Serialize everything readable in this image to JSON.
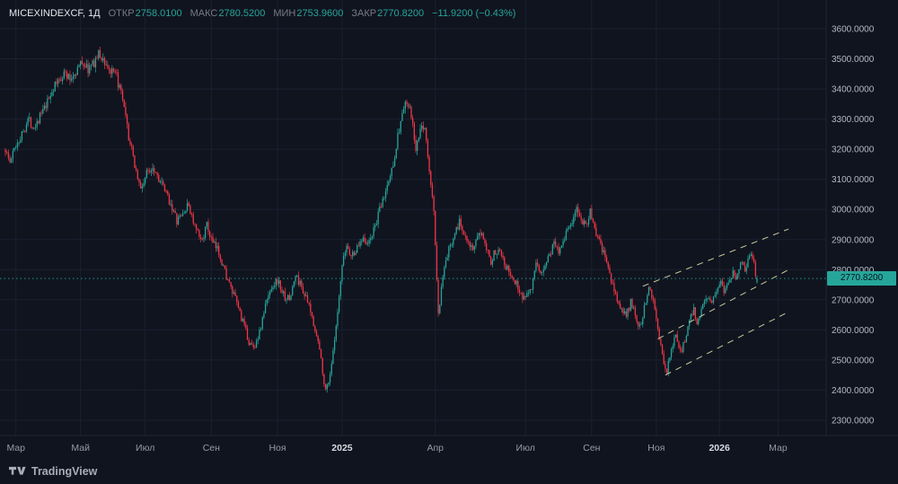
{
  "header": {
    "symbol": "MICEXINDEXCF, 1Д",
    "fields": [
      {
        "label": "ОТКР",
        "value": "2758.0100"
      },
      {
        "label": "МАКС",
        "value": "2780.5200"
      },
      {
        "label": "МИН",
        "value": "2753.9600"
      },
      {
        "label": "ЗАКР",
        "value": "2770.8200"
      }
    ],
    "change": "−11.9200 (−0.43%)"
  },
  "price_scale": {
    "ticks": [
      3600,
      3500,
      3400,
      3300,
      3200,
      3100,
      3000,
      2900,
      2800,
      2700,
      2600,
      2500,
      2400,
      2300
    ],
    "decimals": 4,
    "last_price_label": "2770.8200"
  },
  "time_scale": {
    "labels": [
      {
        "text": "Мар",
        "day": 7,
        "major": false
      },
      {
        "text": "Май",
        "day": 50,
        "major": false
      },
      {
        "text": "Июл",
        "day": 93,
        "major": false
      },
      {
        "text": "Сен",
        "day": 137,
        "major": false
      },
      {
        "text": "Ноя",
        "day": 181,
        "major": false
      },
      {
        "text": "2025",
        "day": 224,
        "major": true
      },
      {
        "text": "Апр",
        "day": 286,
        "major": false
      },
      {
        "text": "Июл",
        "day": 346,
        "major": false
      },
      {
        "text": "Сен",
        "day": 390,
        "major": false
      },
      {
        "text": "Ноя",
        "day": 433,
        "major": false
      },
      {
        "text": "2026",
        "day": 475,
        "major": true
      },
      {
        "text": "Мар",
        "day": 514,
        "major": false
      }
    ]
  },
  "footer": {
    "brand": "TradingView"
  },
  "chart_data": {
    "type": "candlestick",
    "symbol": "MICEXINDEXCF",
    "interval": "1Д",
    "title": "MICEX Index daily candlestick chart",
    "y_range": [
      2250,
      3650
    ],
    "grid": true,
    "total_days": 500,
    "last_candle": {
      "open": 2758.01,
      "high": 2780.52,
      "low": 2753.96,
      "close": 2770.82
    },
    "change": -11.92,
    "change_pct": -0.43,
    "price_line": 2770.82,
    "price_anchors": [
      [
        0,
        3200
      ],
      [
        3,
        3155
      ],
      [
        7,
        3215
      ],
      [
        11,
        3250
      ],
      [
        15,
        3300
      ],
      [
        19,
        3275
      ],
      [
        23,
        3310
      ],
      [
        27,
        3340
      ],
      [
        31,
        3395
      ],
      [
        35,
        3425
      ],
      [
        39,
        3455
      ],
      [
        43,
        3430
      ],
      [
        47,
        3460
      ],
      [
        51,
        3490
      ],
      [
        55,
        3465
      ],
      [
        58,
        3480
      ],
      [
        62,
        3515
      ],
      [
        66,
        3490
      ],
      [
        70,
        3455
      ],
      [
        74,
        3440
      ],
      [
        78,
        3360
      ],
      [
        82,
        3240
      ],
      [
        86,
        3150
      ],
      [
        90,
        3065
      ],
      [
        94,
        3120
      ],
      [
        98,
        3145
      ],
      [
        102,
        3105
      ],
      [
        106,
        3060
      ],
      [
        110,
        3020
      ],
      [
        114,
        2960
      ],
      [
        118,
        2985
      ],
      [
        122,
        3015
      ],
      [
        126,
        2940
      ],
      [
        130,
        2895
      ],
      [
        134,
        2945
      ],
      [
        138,
        2885
      ],
      [
        142,
        2860
      ],
      [
        146,
        2795
      ],
      [
        150,
        2735
      ],
      [
        154,
        2690
      ],
      [
        158,
        2625
      ],
      [
        162,
        2560
      ],
      [
        165,
        2540
      ],
      [
        169,
        2590
      ],
      [
        173,
        2680
      ],
      [
        177,
        2745
      ],
      [
        181,
        2765
      ],
      [
        185,
        2715
      ],
      [
        189,
        2700
      ],
      [
        193,
        2780
      ],
      [
        197,
        2745
      ],
      [
        201,
        2690
      ],
      [
        205,
        2625
      ],
      [
        209,
        2535
      ],
      [
        213,
        2395
      ],
      [
        216,
        2455
      ],
      [
        219,
        2560
      ],
      [
        222,
        2700
      ],
      [
        224,
        2810
      ],
      [
        227,
        2880
      ],
      [
        230,
        2845
      ],
      [
        234,
        2870
      ],
      [
        238,
        2915
      ],
      [
        241,
        2880
      ],
      [
        245,
        2930
      ],
      [
        249,
        2995
      ],
      [
        253,
        3060
      ],
      [
        257,
        3130
      ],
      [
        261,
        3240
      ],
      [
        264,
        3320
      ],
      [
        267,
        3355
      ],
      [
        270,
        3310
      ],
      [
        273,
        3195
      ],
      [
        276,
        3260
      ],
      [
        279,
        3280
      ],
      [
        282,
        3120
      ],
      [
        285,
        3000
      ],
      [
        288,
        2645
      ],
      [
        290,
        2730
      ],
      [
        293,
        2830
      ],
      [
        296,
        2880
      ],
      [
        299,
        2930
      ],
      [
        302,
        2955
      ],
      [
        305,
        2925
      ],
      [
        308,
        2900
      ],
      [
        311,
        2860
      ],
      [
        314,
        2900
      ],
      [
        317,
        2930
      ],
      [
        320,
        2880
      ],
      [
        323,
        2830
      ],
      [
        326,
        2860
      ],
      [
        329,
        2875
      ],
      [
        332,
        2825
      ],
      [
        335,
        2790
      ],
      [
        338,
        2765
      ],
      [
        341,
        2745
      ],
      [
        344,
        2705
      ],
      [
        347,
        2725
      ],
      [
        350,
        2745
      ],
      [
        353,
        2810
      ],
      [
        356,
        2785
      ],
      [
        359,
        2820
      ],
      [
        362,
        2850
      ],
      [
        365,
        2890
      ],
      [
        368,
        2865
      ],
      [
        371,
        2900
      ],
      [
        374,
        2935
      ],
      [
        377,
        2960
      ],
      [
        380,
        2995
      ],
      [
        383,
        2970
      ],
      [
        386,
        2950
      ],
      [
        389,
        2990
      ],
      [
        392,
        2935
      ],
      [
        395,
        2890
      ],
      [
        398,
        2855
      ],
      [
        401,
        2800
      ],
      [
        404,
        2745
      ],
      [
        407,
        2700
      ],
      [
        410,
        2665
      ],
      [
        413,
        2645
      ],
      [
        416,
        2690
      ],
      [
        419,
        2650
      ],
      [
        422,
        2610
      ],
      [
        425,
        2670
      ],
      [
        428,
        2755
      ],
      [
        431,
        2700
      ],
      [
        434,
        2610
      ],
      [
        436,
        2540
      ],
      [
        438,
        2480
      ],
      [
        440,
        2465
      ],
      [
        442,
        2520
      ],
      [
        444,
        2555
      ],
      [
        446,
        2585
      ],
      [
        448,
        2545
      ],
      [
        450,
        2530
      ],
      [
        452,
        2565
      ],
      [
        454,
        2615
      ],
      [
        456,
        2650
      ],
      [
        458,
        2665
      ],
      [
        460,
        2630
      ],
      [
        462,
        2650
      ],
      [
        464,
        2690
      ],
      [
        466,
        2715
      ],
      [
        468,
        2695
      ],
      [
        470,
        2700
      ],
      [
        472,
        2725
      ],
      [
        474,
        2745
      ],
      [
        476,
        2765
      ],
      [
        478,
        2735
      ],
      [
        480,
        2755
      ],
      [
        482,
        2775
      ],
      [
        484,
        2795
      ],
      [
        486,
        2775
      ],
      [
        488,
        2800
      ],
      [
        490,
        2825
      ],
      [
        492,
        2800
      ],
      [
        494,
        2835
      ],
      [
        496,
        2860
      ],
      [
        498,
        2815
      ],
      [
        500,
        2770.82
      ]
    ],
    "trendlines": [
      {
        "name": "channel-upper",
        "from": [
          424,
          2745
        ],
        "to": [
          521,
          2935
        ]
      },
      {
        "name": "channel-middle",
        "from": [
          434,
          2570
        ],
        "to": [
          523,
          2805
        ]
      },
      {
        "name": "channel-lower",
        "from": [
          439,
          2450
        ],
        "to": [
          521,
          2660
        ]
      }
    ],
    "colors": {
      "background": "#10141f",
      "grid": "#1b2030",
      "up": "#26a69a",
      "down": "#f23645",
      "trendline": "#c9cb98",
      "price_line": "#26a69a",
      "badge_bg": "#26a69a",
      "badge_text": "#07131a",
      "axis_text": "#b4b9c4",
      "time_text": "#959aa5",
      "time_text_major": "#d7dae1",
      "separator": "#1f2433"
    }
  }
}
